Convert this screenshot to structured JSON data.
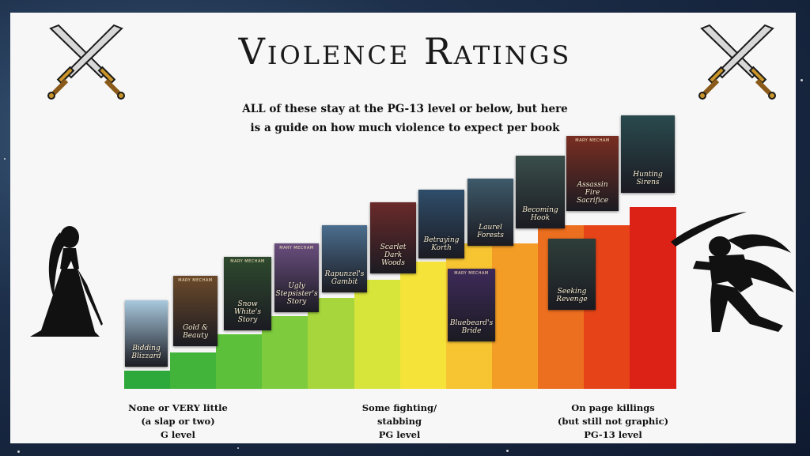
{
  "title": "Violence Ratings",
  "subtitle": "ALL of these stay at the PG-13 level or below, but here is a guide on how much violence to expect per book",
  "colors": {
    "panel": "#f7f7f7",
    "steps": [
      "#2da83a",
      "#43b43a",
      "#5dc03a",
      "#7ecb3d",
      "#a7d63c",
      "#d7e43a",
      "#f5e33a",
      "#f7c532",
      "#f39d27",
      "#ec6f1f",
      "#e64418",
      "#dc2217"
    ]
  },
  "books": [
    {
      "author": "",
      "name": "Bidding Blizzard",
      "bg": "#a9c9de"
    },
    {
      "author": "MARY MECHAM",
      "name": "Gold & Beauty",
      "bg": "#6b4a2a"
    },
    {
      "author": "MARY MECHAM",
      "name": "Snow White's Story",
      "bg": "#2e4a2e"
    },
    {
      "author": "MARY MECHAM",
      "name": "Ugly Stepsister's Story",
      "bg": "#6a4e7e"
    },
    {
      "author": "",
      "name": "Rapunzel's Gambit",
      "bg": "#4b6e8e"
    },
    {
      "author": "",
      "name": "Scarlet Dark Woods",
      "bg": "#6a2a2a"
    },
    {
      "author": "",
      "name": "Betraying Korth",
      "bg": "#2f4e6a"
    },
    {
      "author": "",
      "name": "Laurel Forests",
      "bg": "#3e5a6a"
    },
    {
      "author": "MARY MECHAM",
      "name": "Bluebeard's Bride",
      "bg": "#3e2a5a"
    },
    {
      "author": "",
      "name": "Becoming Hook",
      "bg": "#3a4e4a"
    },
    {
      "author": "",
      "name": "Seeking Revenge",
      "bg": "#2e3e3a"
    },
    {
      "author": "MARY MECHAM",
      "name": "Assassin Fire Sacrifice",
      "bg": "#7a2e22"
    },
    {
      "author": "",
      "name": "Hunting Sirens",
      "bg": "#2a4a4e"
    }
  ],
  "labels": {
    "low": [
      "None or VERY little",
      "(a slap or two)",
      "G level"
    ],
    "mid": [
      "Some fighting/",
      "stabbing",
      "PG level"
    ],
    "high": [
      "On page killings",
      "(but still not graphic)",
      "PG-13 level"
    ]
  },
  "icons": {
    "swords_left": "crossed-swords-icon",
    "swords_right": "crossed-swords-icon",
    "princess": "princess-silhouette-icon",
    "warrior": "warrior-silhouette-icon"
  }
}
